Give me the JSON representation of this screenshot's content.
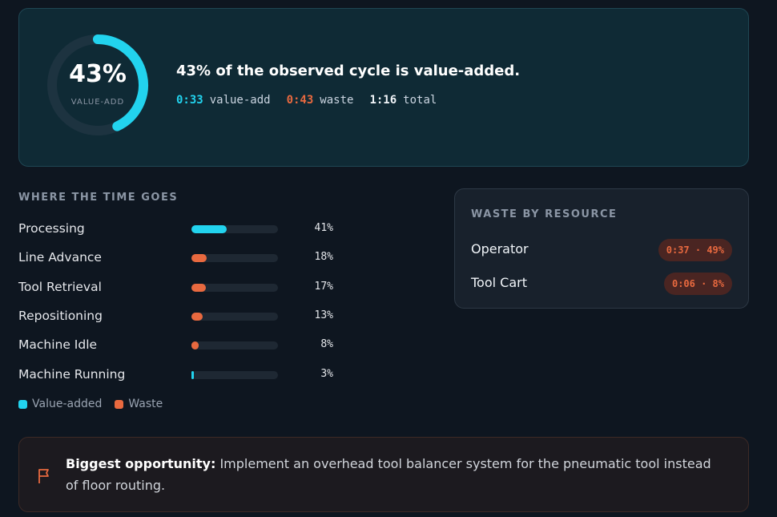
{
  "summary": {
    "percent": {
      "value": 43,
      "label": "43%"
    },
    "ring_label": "VALUE-ADD",
    "headline": "43% of the observed cycle is value-added.",
    "stats": [
      {
        "value": "0:33",
        "label": "value-add",
        "color": "#22d3ee"
      },
      {
        "value": "0:43",
        "label": "waste",
        "color": "#e8693f"
      },
      {
        "value": "1:16",
        "label": "total",
        "color": "#f1f5f9"
      }
    ]
  },
  "breakdown": {
    "title": "WHERE THE TIME GOES",
    "rows": [
      {
        "name": "Processing",
        "value": 41,
        "label": "41%",
        "color": "#22d3ee"
      },
      {
        "name": "Line Advance",
        "value": 18,
        "label": "18%",
        "color": "#e8693f"
      },
      {
        "name": "Tool Retrieval",
        "value": 17,
        "label": "17%",
        "color": "#e8693f"
      },
      {
        "name": "Repositioning",
        "value": 13,
        "label": "13%",
        "color": "#e8693f"
      },
      {
        "name": "Machine Idle",
        "value": 8,
        "label": "8%",
        "color": "#e8693f"
      },
      {
        "name": "Machine Running",
        "value": 3,
        "label": "3%",
        "color": "#22d3ee"
      }
    ],
    "legend": [
      {
        "name": "Value-added",
        "color": "#22d3ee"
      },
      {
        "name": "Waste",
        "color": "#e8693f"
      }
    ]
  },
  "resources": {
    "title": "WASTE BY RESOURCE",
    "rows": [
      {
        "name": "Operator",
        "label": "0:37 · 49%"
      },
      {
        "name": "Tool Cart",
        "label": "0:06 · 8%"
      }
    ]
  },
  "opportunity": {
    "title": "Biggest opportunity:",
    "text": "Implement an overhead tool balancer system for the pneumatic tool instead of floor routing."
  }
}
